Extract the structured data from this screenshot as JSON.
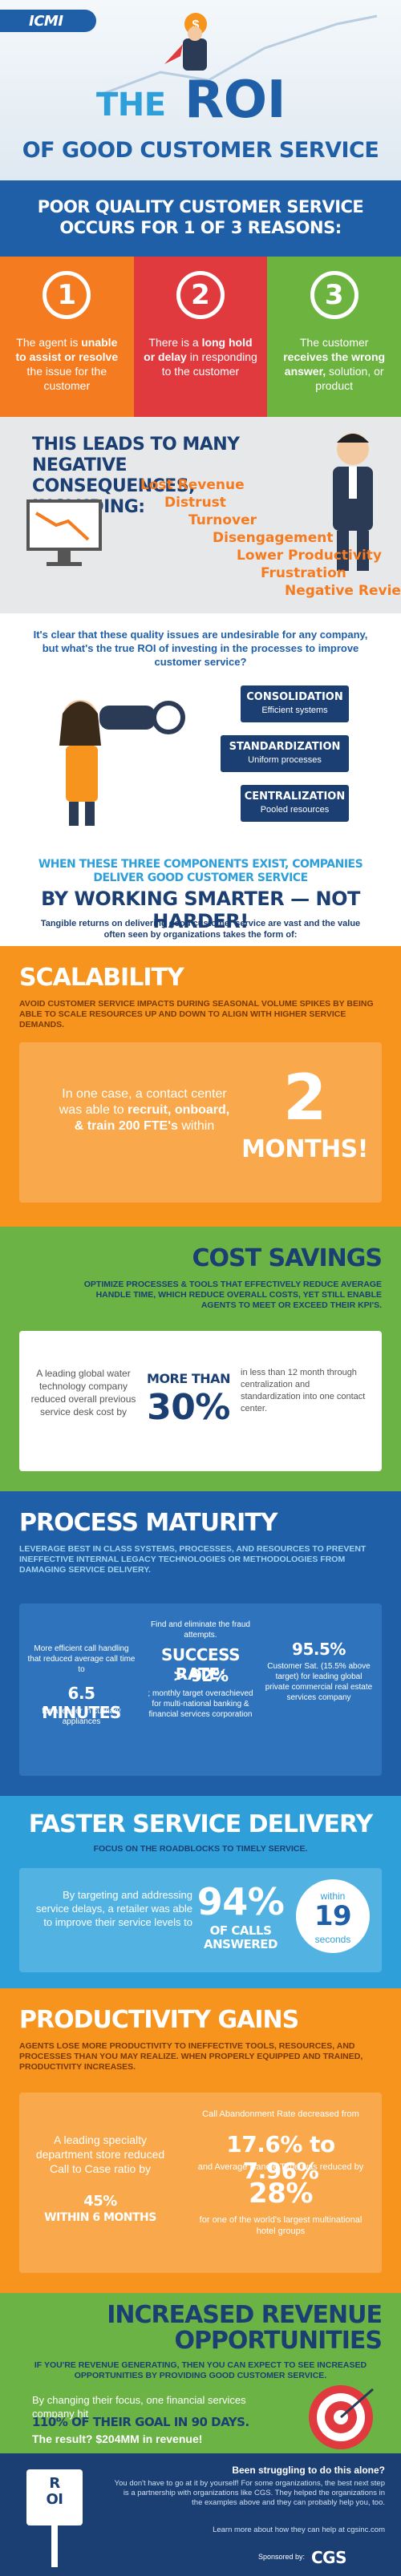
{
  "header": {
    "logo": "ICMI",
    "title_the": "THE",
    "title_roi": "ROI",
    "subtitle": "OF GOOD CUSTOMER SERVICE"
  },
  "reasons": {
    "heading": "POOR QUALITY CUSTOMER SERVICE OCCURS FOR 1 OF 3 REASONS:",
    "items": [
      {
        "number": "1",
        "text": [
          "The agent is ",
          "unable to assist or resolve",
          " the issue for the customer"
        ]
      },
      {
        "number": "2",
        "text": [
          "There is a ",
          "long hold or delay",
          " in responding to the customer"
        ]
      },
      {
        "number": "3",
        "text": [
          "The customer ",
          "receives the wrong answer,",
          " solution, or product"
        ]
      }
    ]
  },
  "consequences": {
    "heading": "THIS LEADS TO MANY NEGATIVE CONSEQUENCES, INCLUDING:",
    "items": [
      "Lost Revenue",
      "Distrust",
      "Turnover",
      "Disengagement",
      "Lower Productivity",
      "Frustration",
      "Negative Reviews"
    ]
  },
  "components": {
    "intro": "It's clear that these quality issues are undesirable for any company, but what's the true ROI of investing in the processes to improve customer service?",
    "boxes": [
      {
        "title": "CONSOLIDATION",
        "text": "Efficient systems"
      },
      {
        "title": "STANDARDIZATION",
        "text": "Uniform processes"
      },
      {
        "title": "CENTRALIZATION",
        "text": "Pooled resources"
      }
    ],
    "statement": "WHEN THESE THREE COMPONENTS EXIST, COMPANIES DELIVER GOOD CUSTOMER SERVICE",
    "slogan": "BY WORKING SMARTER — NOT HARDER!",
    "lead": "Tangible returns on delivering good customer service are vast and the value often seen by organizations takes the form of:"
  },
  "scalability": {
    "title": "SCALABILITY",
    "subtitle": "AVOID CUSTOMER SERVICE IMPACTS DURING SEASONAL VOLUME SPIKES BY BEING ABLE TO SCALE RESOURCES UP AND DOWN TO ALIGN WITH HIGHER SERVICE DEMANDS.",
    "text": [
      "In one case, a contact center was able to ",
      "recruit, onboard, & train 200 FTE's",
      " within"
    ],
    "big": "2",
    "big_unit": "MONTHS!"
  },
  "cost": {
    "title": "COST SAVINGS",
    "subtitle": "OPTIMIZE PROCESSES & TOOLS THAT EFFECTIVELY REDUCE AVERAGE HANDLE TIME, WHICH REDUCE OVERALL COSTS, YET STILL ENABLE AGENTS TO MEET OR EXCEED THEIR KPI'S.",
    "left": "A leading global water technology company reduced overall previous service desk cost by",
    "pre": "MORE THAN",
    "big": "30%",
    "right": "in less than 12 month through centralization and standardization into one contact center."
  },
  "process": {
    "title": "PROCESS MATURITY",
    "subtitle": "LEVERAGE BEST IN CLASS SYSTEMS, PROCESSES, AND RESOURCES TO PREVENT INEFFECTIVE INTERNAL LEGACY TECHNOLOGIES OR METHODOLOGIES FROM DAMAGING SERVICE DELIVERY.",
    "col1": {
      "top": "More efficient call handling that reduced average call time to",
      "big": "6.5 MINUTES",
      "bottom": "for a leader in culinary appliances"
    },
    "col2": {
      "top": "Find and eliminate the fraud attempts.",
      "label": "SUCCESS RATE:",
      "big": "> 92%",
      "bottom": "; monthly target overachieved for multi-national banking & financial services corporation"
    },
    "col3": {
      "big": "95.5%",
      "bottom": "Customer Sat. (15.5% above target) for leading global private commercial real estate services company"
    }
  },
  "faster": {
    "title": "FASTER SERVICE DELIVERY",
    "subtitle": "FOCUS ON THE ROADBLOCKS TO TIMELY SERVICE.",
    "text": "By targeting and addressing service delays, a retailer was able to improve their service levels to",
    "big": "94%",
    "big_unit": "OF CALLS ANSWERED",
    "circle_pre": "within",
    "circle_big": "19",
    "circle_unit": "seconds"
  },
  "productivity": {
    "title": "PRODUCTIVITY GAINS",
    "subtitle": "AGENTS LOSE MORE PRODUCTIVITY TO INEFFECTIVE TOOLS, RESOURCES, AND PROCESSES THAN YOU MAY REALIZE. WHEN PROPERLY EQUIPPED AND TRAINED, PRODUCTIVITY INCREASES.",
    "left": "A leading specialty department store reduced Call to Case ratio by",
    "left_big": "45%",
    "left_bold": "WITHIN 6 MONTHS",
    "r1": "Call Abandonment Rate decreased from",
    "r_big": "17.6% to 7.96%",
    "r2": "and Average Handle Time was reduced by",
    "r_big2": "28%",
    "r3": "for one of the world's largest multinational hotel groups"
  },
  "revenue": {
    "title": "INCREASED REVENUE OPPORTUNITIES",
    "subtitle": "IF YOU'RE REVENUE GENERATING, THEN YOU CAN EXPECT TO SEE INCREASED OPPORTUNITIES BY PROVIDING GOOD CUSTOMER SERVICE.",
    "text": "By changing their focus, one financial services company hit",
    "bold": "110% OF THEIR GOAL IN 90 DAYS.",
    "result": "The result? $204MM in revenue!"
  },
  "footer": {
    "sign": "ROI",
    "heading": "Been struggling to do this alone?",
    "text": "You don't have to go at it by yourself! For some organizations, the best next step is a partnership with organizations like CGS. They helped the organizations in the examples above and they can probably help you, too.",
    "link": "Learn more about how they can help at cgsinc.com",
    "sponsor": "Sponsored by:",
    "sponsor_name": "CGS"
  }
}
